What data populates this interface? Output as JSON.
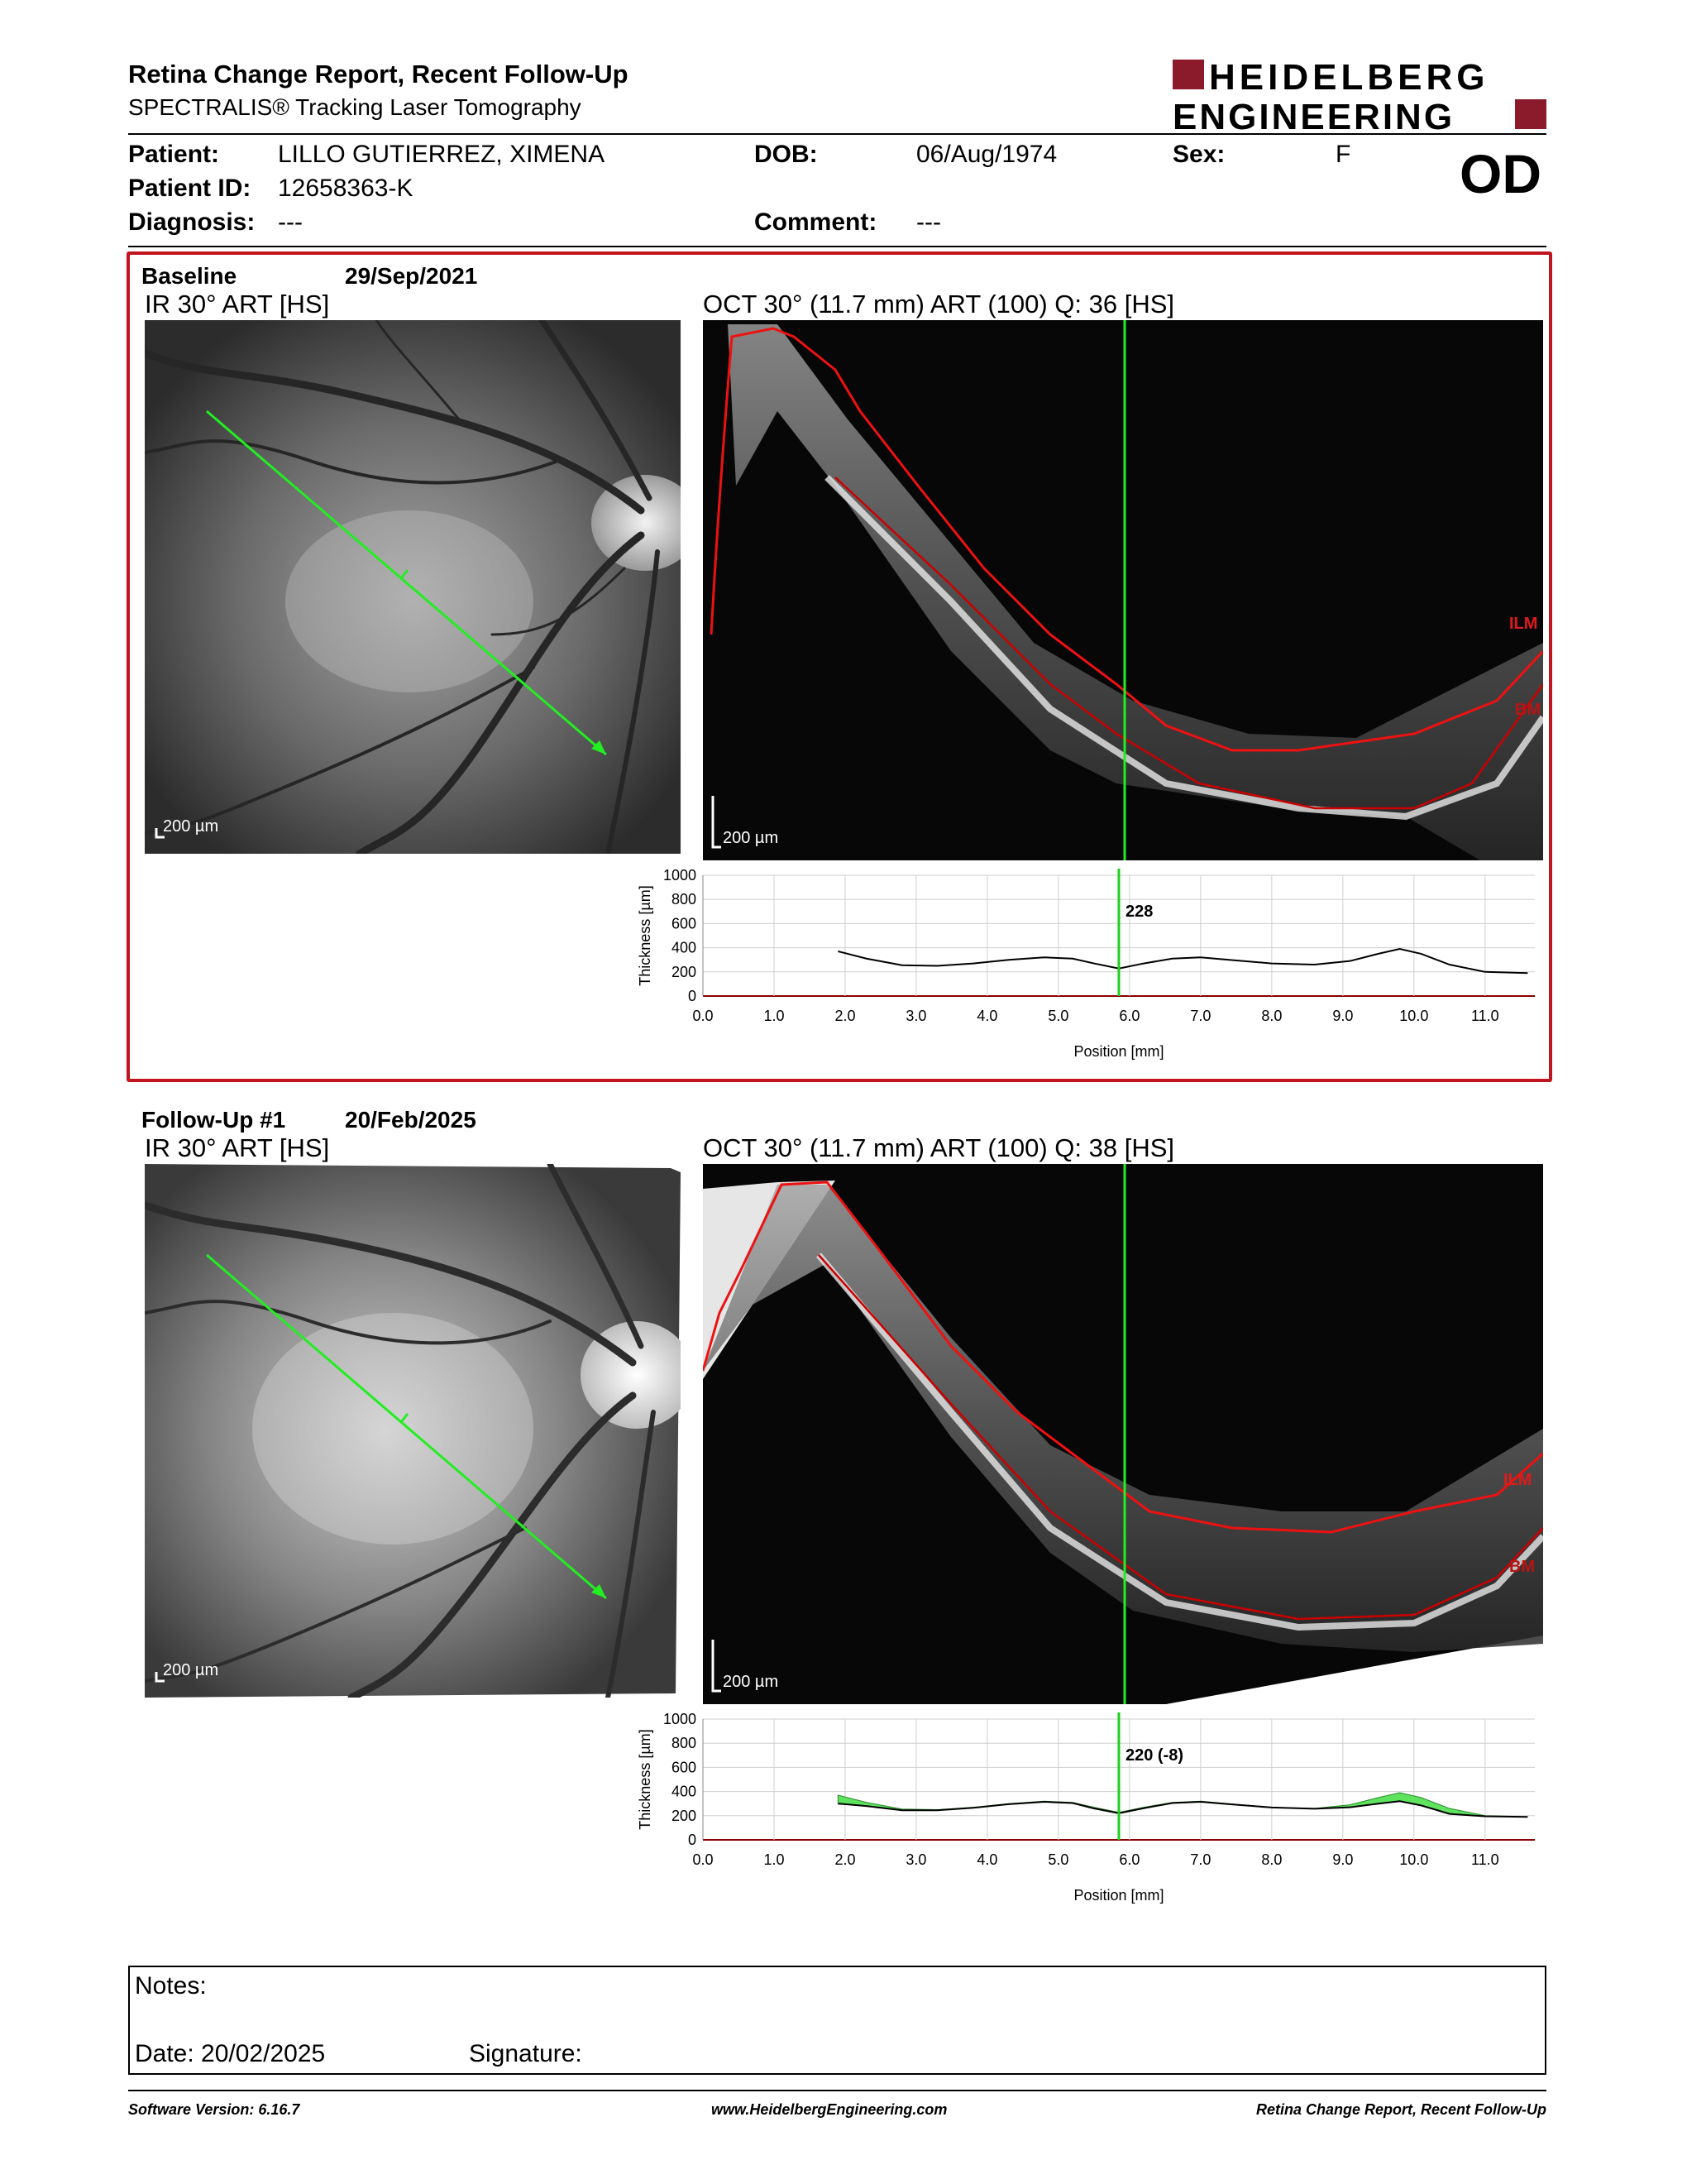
{
  "header": {
    "title": "Retina Change Report, Recent Follow-Up",
    "subtitle": "SPECTRALIS® Tracking Laser Tomography",
    "logo_line1": "HEIDELBERG",
    "logo_line2": "ENGINEERING",
    "eye": "OD"
  },
  "patient": {
    "patient_label": "Patient:",
    "patient_value": "LILLO GUTIERREZ, XIMENA",
    "dob_label": "DOB:",
    "dob_value": "06/Aug/1974",
    "sex_label": "Sex:",
    "sex_value": "F",
    "id_label": "Patient ID:",
    "id_value": "12658363-K",
    "diagnosis_label": "Diagnosis:",
    "diagnosis_value": "---",
    "comment_label": "Comment:",
    "comment_value": "---"
  },
  "baseline": {
    "label": "Baseline",
    "date": "29/Sep/2021",
    "ir_title": "IR 30° ART [HS]",
    "oct_title": "OCT 30° (11.7 mm) ART (100) Q: 36 [HS]",
    "ir_scale": "200 µm",
    "oct_scale": "200 µm",
    "layer_top": "ILM",
    "layer_bottom": "BM"
  },
  "followup": {
    "label": "Follow-Up #1",
    "date": "20/Feb/2025",
    "ir_title": "IR 30° ART [HS]",
    "oct_title": "OCT 30° (11.7 mm) ART (100) Q: 38 [HS]",
    "ir_scale": "200 µm",
    "oct_scale": "200 µm",
    "layer_top": "ILM",
    "layer_bottom": "BM"
  },
  "chart_data": [
    {
      "type": "line",
      "name": "baseline",
      "xlabel": "Position [mm]",
      "ylabel": "Thickness [µm]",
      "xlim": [
        0,
        11.7
      ],
      "ylim": [
        0,
        1000
      ],
      "xticks": [
        "0.0",
        "1.0",
        "2.0",
        "3.0",
        "4.0",
        "5.0",
        "6.0",
        "7.0",
        "8.0",
        "9.0",
        "10.0",
        "11.0"
      ],
      "yticks": [
        "0",
        "200",
        "400",
        "600",
        "800",
        "1000"
      ],
      "marker_x": 5.85,
      "marker_label": "228",
      "x": [
        1.9,
        2.3,
        2.8,
        3.3,
        3.8,
        4.3,
        4.8,
        5.2,
        5.5,
        5.85,
        6.2,
        6.6,
        7.0,
        7.4,
        8.0,
        8.6,
        9.1,
        9.5,
        9.8,
        10.1,
        10.5,
        11.0,
        11.6
      ],
      "y": [
        370,
        310,
        255,
        250,
        270,
        300,
        320,
        310,
        270,
        228,
        270,
        310,
        320,
        300,
        270,
        260,
        290,
        350,
        390,
        350,
        260,
        200,
        190
      ],
      "colors": {
        "line": "#000000",
        "marker": "#19d219",
        "axis": "#8b0000"
      }
    },
    {
      "type": "area",
      "name": "follow-up",
      "xlabel": "Position [mm]",
      "ylabel": "Thickness [µm]",
      "xlim": [
        0,
        11.7
      ],
      "ylim": [
        0,
        1000
      ],
      "xticks": [
        "0.0",
        "1.0",
        "2.0",
        "3.0",
        "4.0",
        "5.0",
        "6.0",
        "7.0",
        "8.0",
        "9.0",
        "10.0",
        "11.0"
      ],
      "yticks": [
        "0",
        "200",
        "400",
        "600",
        "800",
        "1000"
      ],
      "marker_x": 5.85,
      "marker_label": "220 (-8)",
      "x": [
        1.9,
        2.3,
        2.8,
        3.3,
        3.8,
        4.3,
        4.8,
        5.2,
        5.5,
        5.85,
        6.2,
        6.6,
        7.0,
        7.4,
        8.0,
        8.6,
        9.1,
        9.5,
        9.8,
        10.1,
        10.5,
        11.0,
        11.6
      ],
      "y": [
        300,
        280,
        245,
        245,
        265,
        295,
        315,
        305,
        260,
        220,
        262,
        305,
        315,
        295,
        268,
        258,
        270,
        300,
        320,
        285,
        215,
        195,
        190
      ],
      "baseline_y": [
        370,
        310,
        255,
        250,
        270,
        300,
        320,
        310,
        270,
        228,
        270,
        310,
        320,
        300,
        270,
        260,
        290,
        350,
        390,
        350,
        260,
        200,
        190
      ],
      "colors": {
        "line": "#000000",
        "fill": "#5ee35e",
        "marker": "#19d219",
        "axis": "#8b0000"
      }
    }
  ],
  "notes": {
    "notes_label": "Notes:",
    "date_label": "Date: 20/02/2025",
    "signature_label": "Signature:"
  },
  "footer": {
    "software": "Software Version: 6.16.7",
    "website": "www.HeidelbergEngineering.com",
    "report": "Retina Change Report, Recent Follow-Up"
  }
}
